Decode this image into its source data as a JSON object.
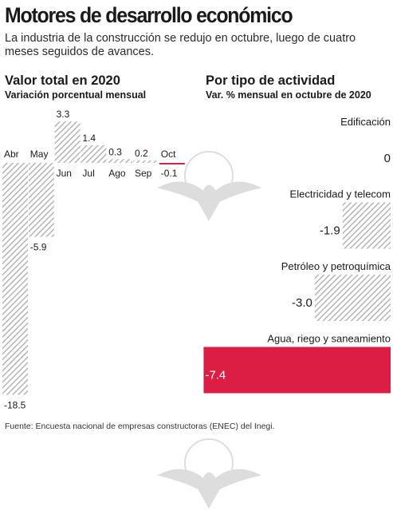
{
  "title": "Motores de desarrollo económico",
  "subtitle": "La industria de la construcción se redujo en octubre, luego de cuatro meses seguidos de avances.",
  "footer": "Fuente: Encuesta nacional de empresas constructoras (ENEC) del Inegi.",
  "colors": {
    "hatch": "#b4b4b4",
    "highlight": "#dc1e44",
    "text": "#1a1a1a"
  },
  "chart_data": [
    {
      "type": "bar",
      "title": "Valor total en 2020",
      "subtitle": "Variación porcentual mensual",
      "categories": [
        "Abr",
        "May",
        "Jun",
        "Jul",
        "Ago",
        "Sep",
        "Oct"
      ],
      "value_labels": [
        "-18.5",
        "-5.9",
        "3.3",
        "1.4",
        "0.3",
        "0.2",
        "-0.1"
      ],
      "values": [
        -18.5,
        -5.9,
        3.3,
        1.4,
        0.3,
        0.2,
        -0.1
      ],
      "highlight": "Oct",
      "orientation": "vertical"
    },
    {
      "type": "bar",
      "title": "Por tipo de actividad",
      "subtitle": "Var. % mensual en octubre de 2020",
      "categories": [
        "Edificación",
        "Electricidad y telecom",
        "Petróleo y petroquímica",
        "Agua, riego y saneamiento"
      ],
      "value_labels": [
        "0",
        "-1.9",
        "-3.0",
        "-7.4"
      ],
      "values": [
        0,
        -1.9,
        -3.0,
        -7.4
      ],
      "highlight": "Agua, riego y saneamiento",
      "orientation": "horizontal"
    }
  ]
}
